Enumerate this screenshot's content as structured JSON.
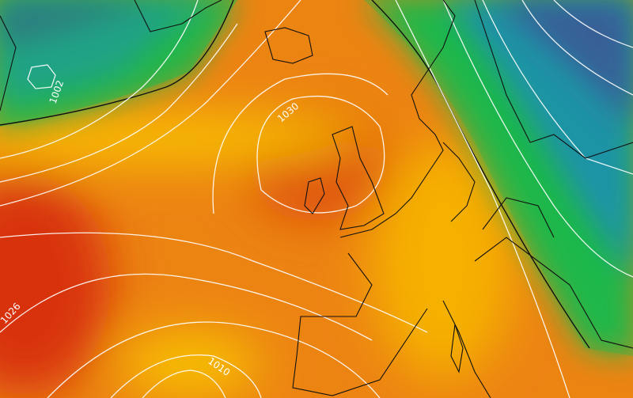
{
  "map": {
    "isobar_labels": [
      "1002",
      "1030",
      "1026",
      "1010"
    ],
    "colors": {
      "deep_low": "#3a2fb8",
      "low": "#1f6fd0",
      "mid_low": "#22b84a",
      "neutral": "#ffcc00",
      "high": "#ef8a10",
      "very_high": "#d83a05",
      "isobar": "#ffffff",
      "coastline": "#111111"
    }
  }
}
